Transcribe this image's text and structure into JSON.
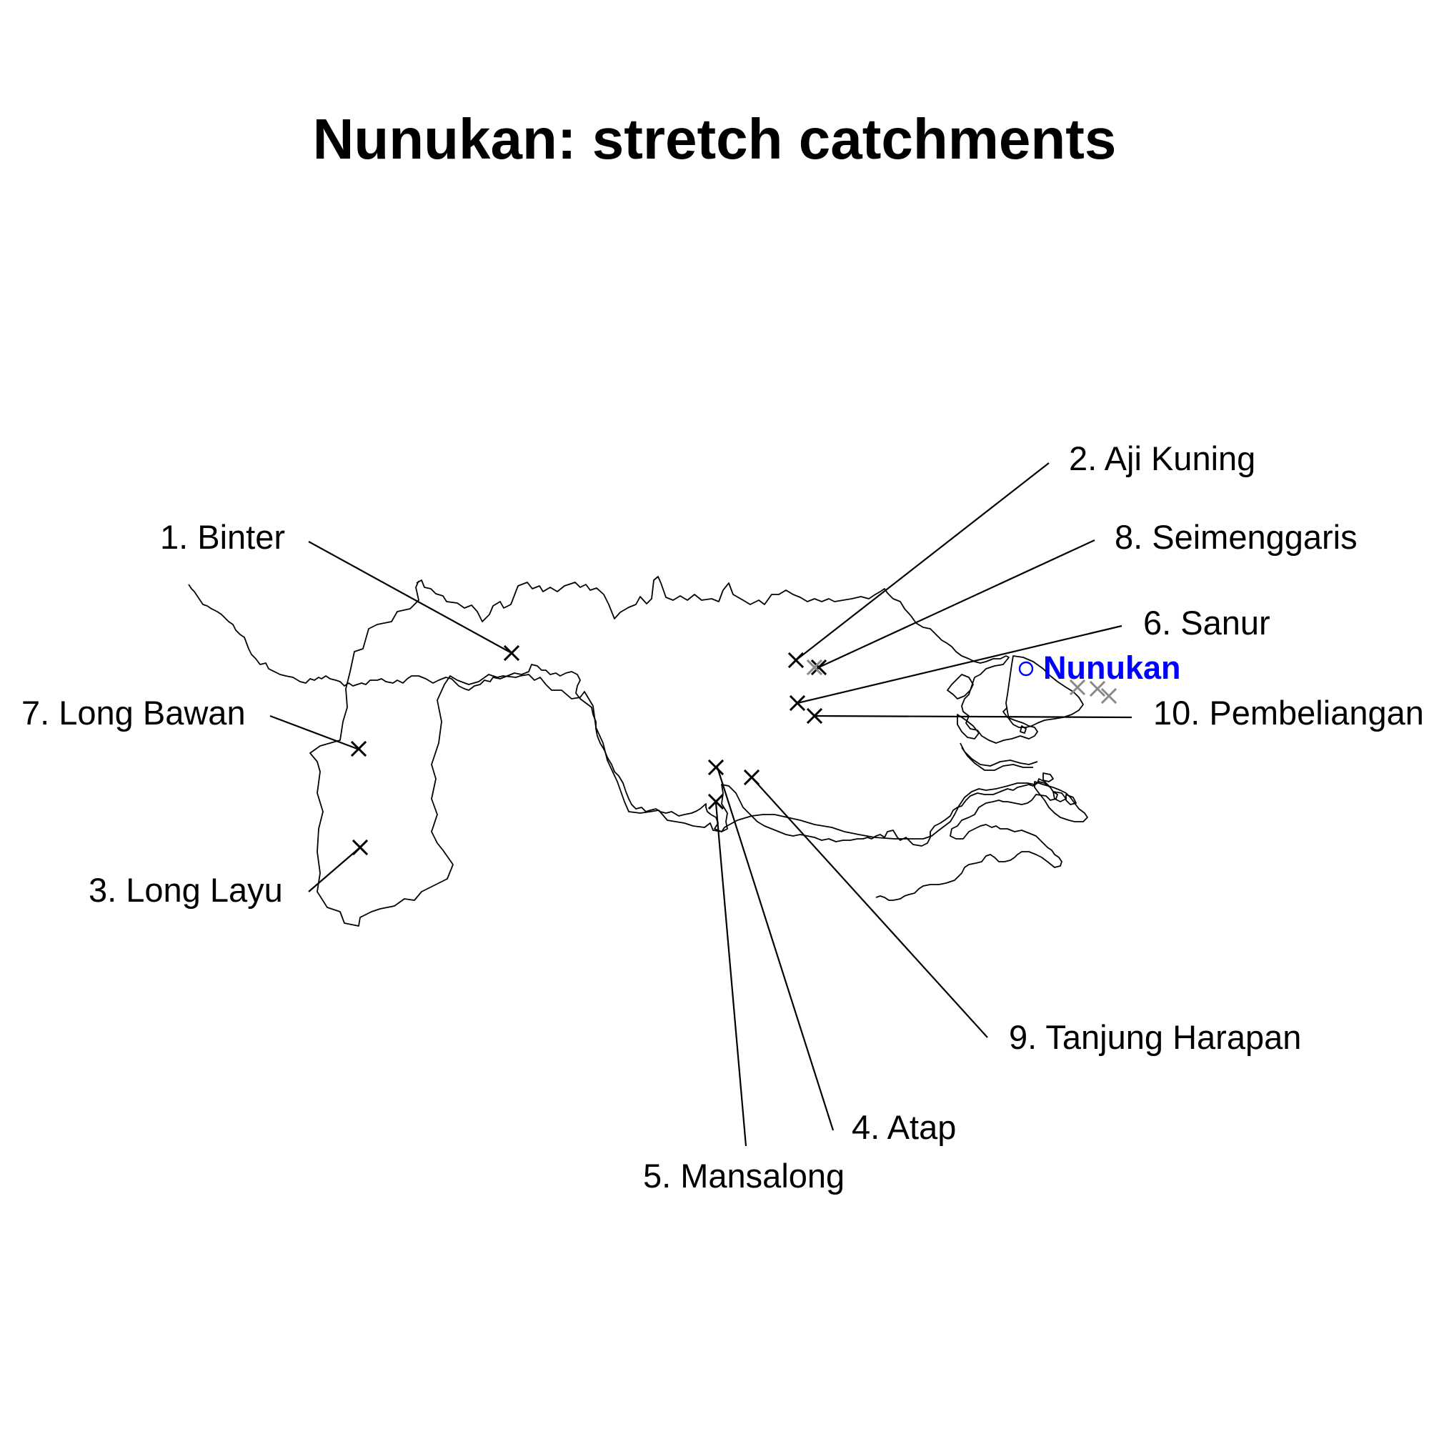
{
  "title": "Nunukan: stretch catchments",
  "colors": {
    "marker": "#000000",
    "inactive_marker": "#8a8a8a",
    "city": "#0000ff",
    "outline": "#000000"
  },
  "city": {
    "name": "Nunukan",
    "icon": "circle-icon"
  },
  "sites": [
    {
      "label": "1. Binter"
    },
    {
      "label": "2. Aji Kuning"
    },
    {
      "label": "3. Long Layu"
    },
    {
      "label": "4. Atap"
    },
    {
      "label": "5. Mansalong"
    },
    {
      "label": "6. Sanur"
    },
    {
      "label": "7. Long Bawan"
    },
    {
      "label": "8. Seimenggaris"
    },
    {
      "label": "9. Tanjung Harapan"
    },
    {
      "label": "10. Pembeliangan"
    }
  ]
}
